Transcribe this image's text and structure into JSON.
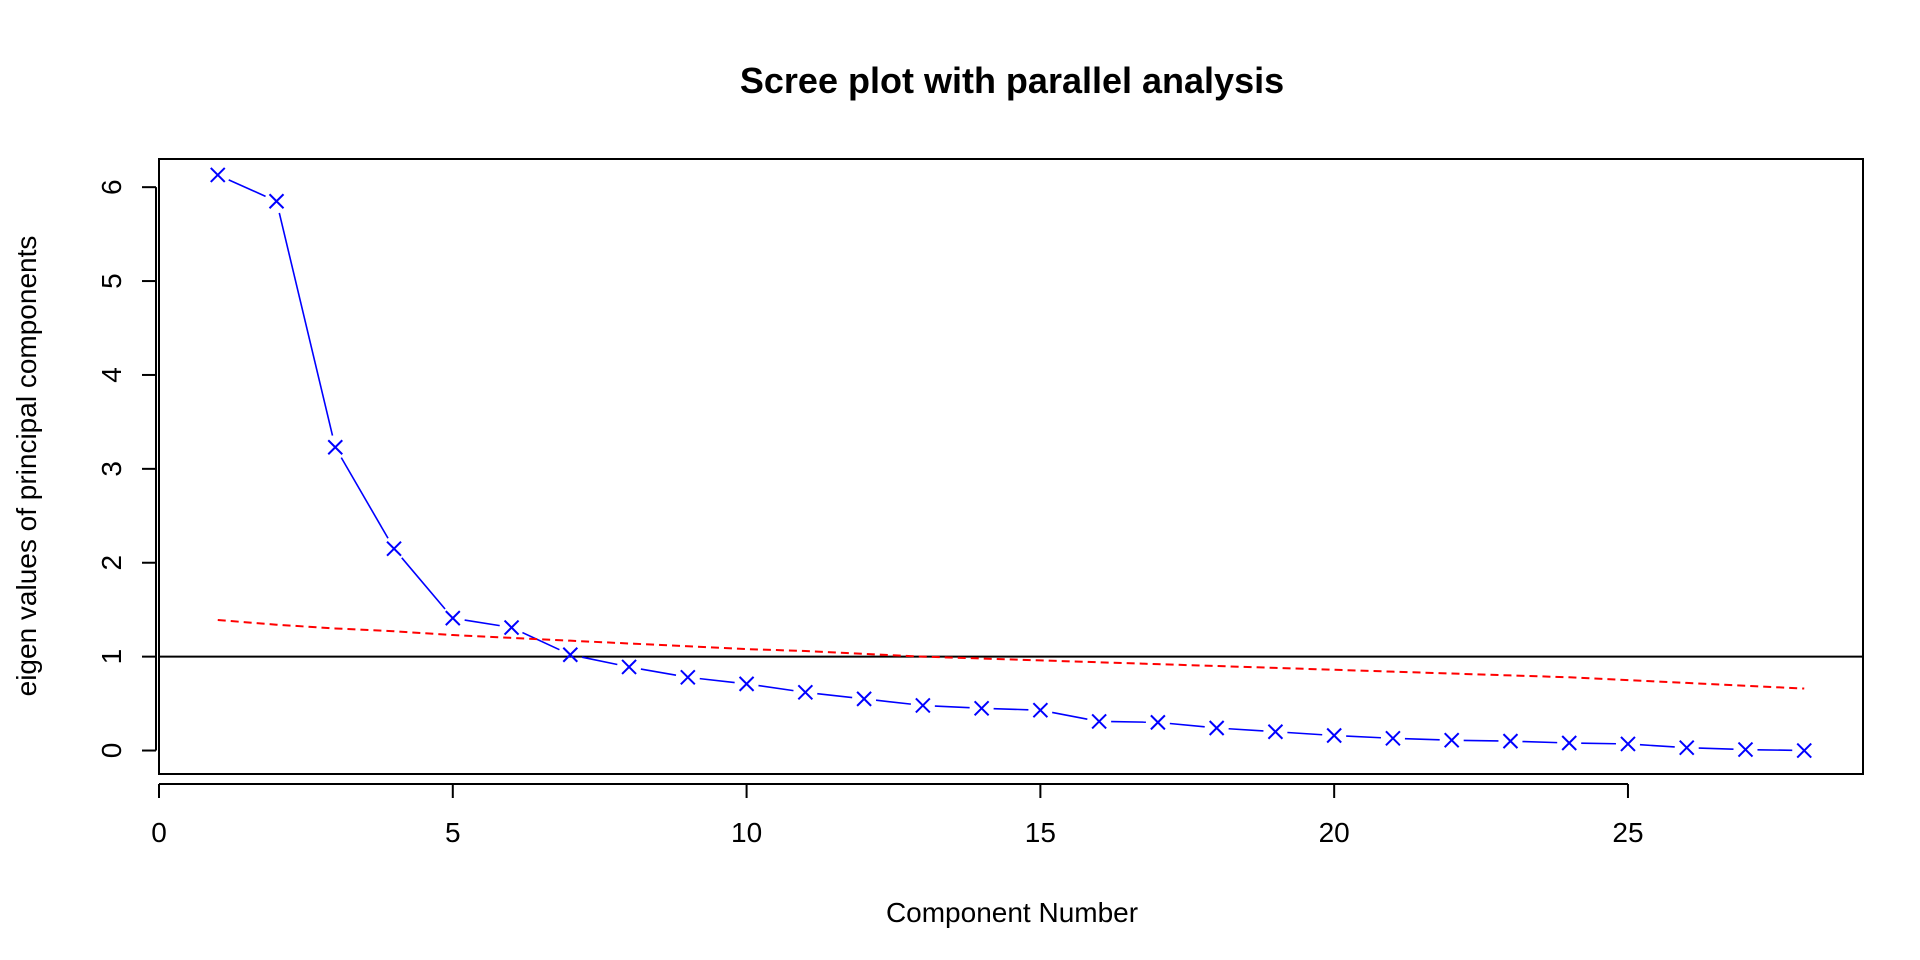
{
  "chart_data": {
    "type": "line",
    "title": "Scree plot with parallel analysis",
    "xlabel": "Component Number",
    "ylabel": "eigen values of principal components",
    "xlim": [
      0,
      29
    ],
    "ylim": [
      -0.25,
      6.3
    ],
    "x_ticks": [
      "0",
      "5",
      "10",
      "15",
      "20",
      "25"
    ],
    "y_ticks": [
      "0",
      "1",
      "2",
      "3",
      "4",
      "5",
      "6"
    ],
    "x": [
      1,
      2,
      3,
      4,
      5,
      6,
      7,
      8,
      9,
      10,
      11,
      12,
      13,
      14,
      15,
      16,
      17,
      18,
      19,
      20,
      21,
      22,
      23,
      24,
      25,
      26,
      27,
      28
    ],
    "series": [
      {
        "marker": "x",
        "style": "solid",
        "color": "#0000FF",
        "values": [
          6.13,
          5.85,
          3.23,
          2.15,
          1.41,
          1.31,
          1.02,
          0.89,
          0.78,
          0.71,
          0.62,
          0.55,
          0.48,
          0.45,
          0.43,
          0.31,
          0.3,
          0.24,
          0.2,
          0.16,
          0.13,
          0.11,
          0.1,
          0.08,
          0.07,
          0.03,
          0.01,
          0.0
        ]
      },
      {
        "style": "dashed",
        "color": "#FF0000",
        "values": [
          1.39,
          1.34,
          1.3,
          1.27,
          1.23,
          1.2,
          1.17,
          1.14,
          1.11,
          1.08,
          1.06,
          1.03,
          1.0,
          0.98,
          0.96,
          0.94,
          0.92,
          0.9,
          0.88,
          0.86,
          0.84,
          0.82,
          0.8,
          0.78,
          0.75,
          0.72,
          0.69,
          0.66
        ]
      }
    ],
    "hline": {
      "y": 1,
      "color": "#000000"
    },
    "grid": false
  }
}
